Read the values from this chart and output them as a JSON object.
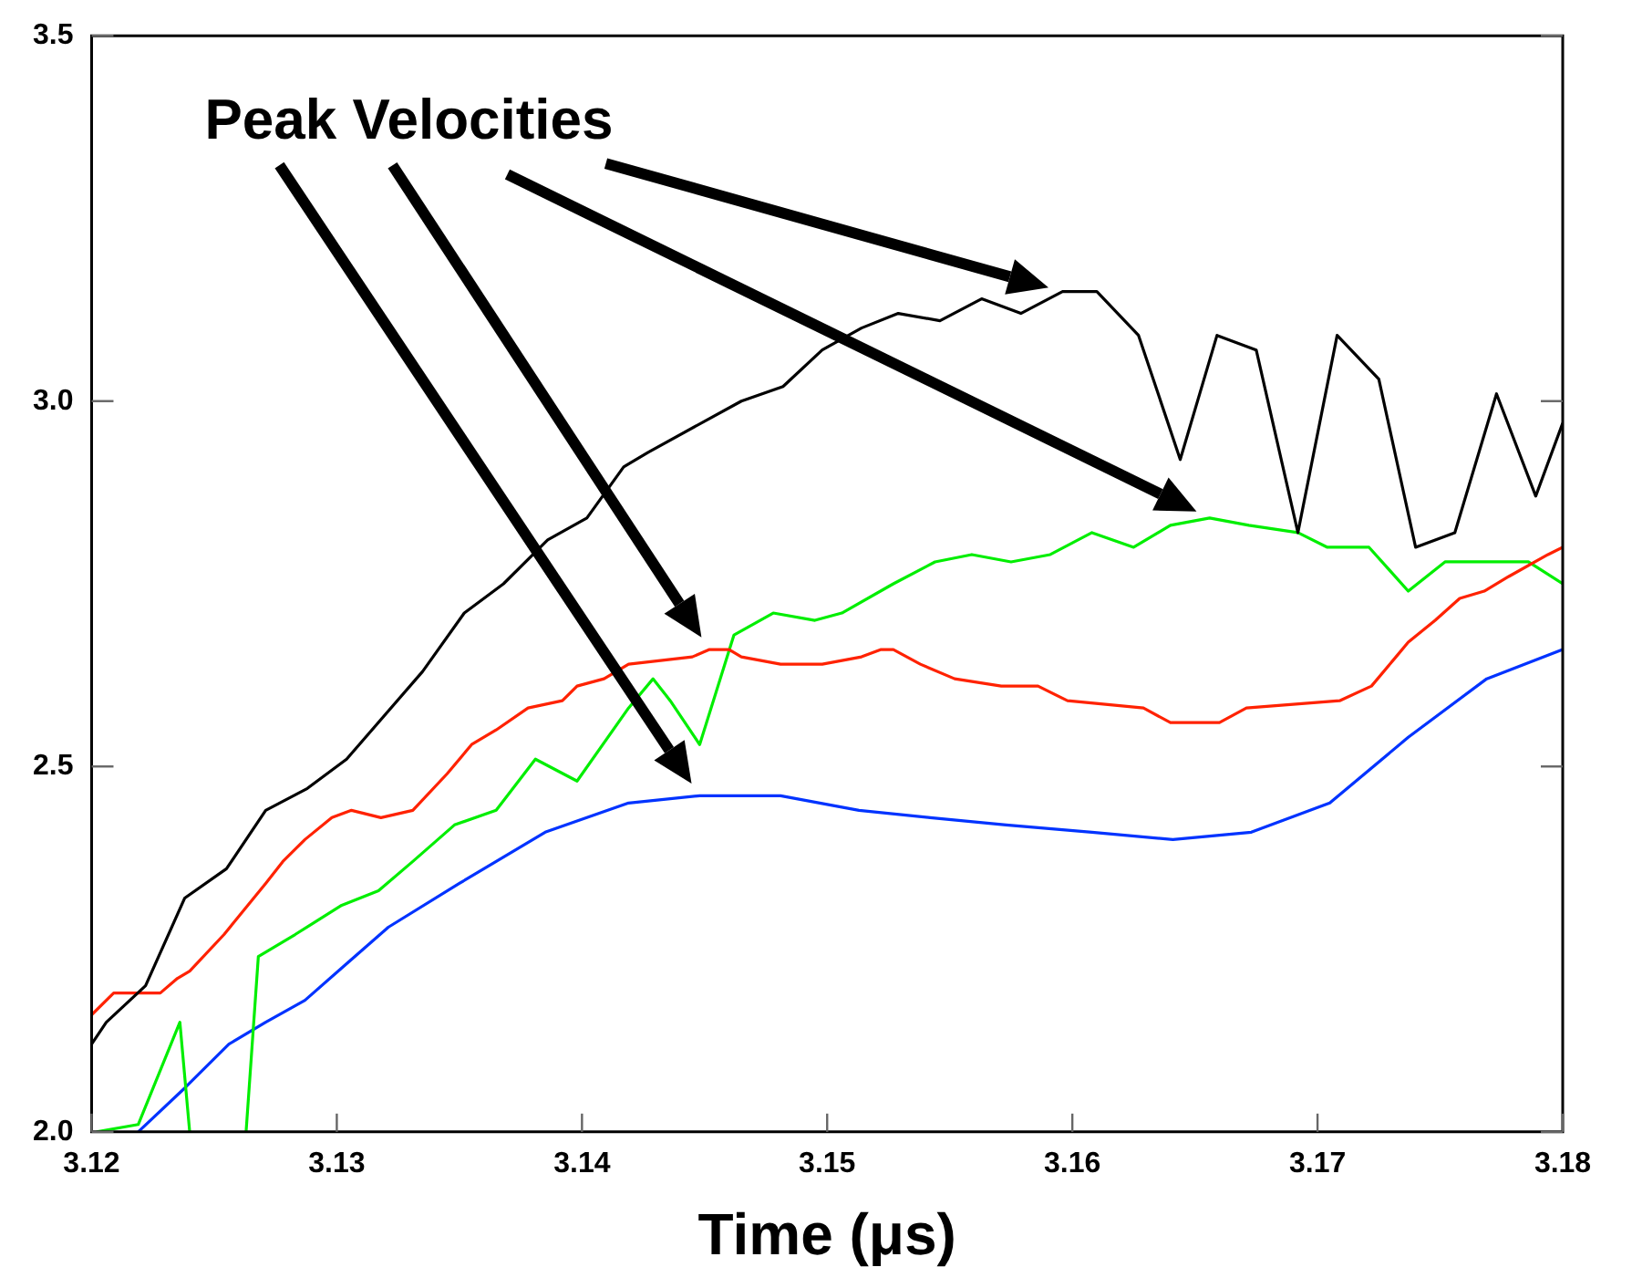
{
  "chart_data": {
    "type": "line",
    "xlabel": "Time (μs)",
    "annotations": [
      "Peak Velocities"
    ],
    "xlim": [
      3.12,
      3.18
    ],
    "xticks": [
      3.12,
      3.13,
      3.14,
      3.15,
      3.16,
      3.17,
      3.18
    ],
    "ylim": [
      2,
      3.5
    ],
    "yticks": [
      {
        "value": 2,
        "label": "2.0"
      },
      {
        "value": 2.5,
        "label": "2.5"
      },
      {
        "value": 3,
        "label": "3.0"
      },
      {
        "value": 3.5,
        "label": "3.5"
      }
    ],
    "grid": false,
    "legend": false,
    "marker": "none",
    "line_style": "solid",
    "series": [
      {
        "color": "#000000",
        "x": [
          3.12,
          3.1206,
          3.1222,
          3.1238,
          3.1255,
          3.1271,
          3.1288,
          3.1304,
          3.1335,
          3.1352,
          3.1368,
          3.1386,
          3.1402,
          3.1417,
          3.1427,
          3.1465,
          3.1482,
          3.1498,
          3.1514,
          3.1529,
          3.1546,
          3.1563,
          3.1579,
          3.1596,
          3.161,
          3.1627,
          3.1644,
          3.1659,
          3.1675,
          3.1692,
          3.1708,
          3.1725,
          3.174,
          3.1756,
          3.1773,
          3.1789,
          3.18
        ],
        "values": [
          2.12,
          2.15,
          2.2,
          2.32,
          2.36,
          2.44,
          2.47,
          2.51,
          2.63,
          2.71,
          2.75,
          2.81,
          2.84,
          2.91,
          2.93,
          3.0,
          3.02,
          3.07,
          3.1,
          3.12,
          3.11,
          3.14,
          3.12,
          3.15,
          3.15,
          3.09,
          2.92,
          3.09,
          3.07,
          2.82,
          3.09,
          3.03,
          2.8,
          2.82,
          3.01,
          2.87,
          2.97
        ]
      },
      {
        "color": "#ff2200",
        "x": [
          3.12,
          3.1209,
          3.1228,
          3.1235,
          3.124,
          3.1254,
          3.1271,
          3.1278,
          3.1287,
          3.1298,
          3.1306,
          3.1318,
          3.1331,
          3.1345,
          3.1355,
          3.1365,
          3.1378,
          3.1392,
          3.1398,
          3.1409,
          3.1419,
          3.1445,
          3.1452,
          3.146,
          3.1465,
          3.1481,
          3.1498,
          3.1514,
          3.1522,
          3.1527,
          3.1538,
          3.1552,
          3.1571,
          3.1586,
          3.1598,
          3.1629,
          3.164,
          3.166,
          3.1671,
          3.1709,
          3.1722,
          3.1732,
          3.1737,
          3.1748,
          3.1758,
          3.1768,
          3.1778,
          3.1794,
          3.18
        ],
        "values": [
          2.16,
          2.19,
          2.19,
          2.21,
          2.22,
          2.27,
          2.34,
          2.37,
          2.4,
          2.43,
          2.44,
          2.43,
          2.44,
          2.49,
          2.53,
          2.55,
          2.58,
          2.59,
          2.61,
          2.62,
          2.64,
          2.65,
          2.66,
          2.66,
          2.65,
          2.64,
          2.64,
          2.65,
          2.66,
          2.66,
          2.64,
          2.62,
          2.61,
          2.61,
          2.59,
          2.58,
          2.56,
          2.56,
          2.58,
          2.59,
          2.61,
          2.65,
          2.67,
          2.7,
          2.73,
          2.74,
          2.76,
          2.79,
          2.8
        ]
      },
      {
        "color": "#00ee00",
        "x": [
          3.1202,
          3.1219,
          3.1236,
          3.124,
          3.125,
          3.1263,
          3.1268,
          3.1283,
          3.1302,
          3.1317,
          3.1331,
          3.1348,
          3.1365,
          3.1381,
          3.1398,
          3.1419,
          3.1429,
          3.1436,
          3.1448,
          3.1462,
          3.1478,
          3.1495,
          3.1506,
          3.1527,
          3.1544,
          3.1559,
          3.1575,
          3.1591,
          3.1608,
          3.1625,
          3.164,
          3.1656,
          3.1672,
          3.1692,
          3.1704,
          3.1721,
          3.1737,
          3.1752,
          3.1771,
          3.1786,
          3.18
        ],
        "values": [
          2.0,
          2.01,
          2.15,
          2.0,
          null,
          2.0,
          2.24,
          2.27,
          2.31,
          2.33,
          2.37,
          2.42,
          2.44,
          2.51,
          2.48,
          2.58,
          2.62,
          2.59,
          2.53,
          2.68,
          2.71,
          2.7,
          2.71,
          2.75,
          2.78,
          2.79,
          2.78,
          2.79,
          2.82,
          2.8,
          2.83,
          2.84,
          2.83,
          2.82,
          2.8,
          2.8,
          2.74,
          2.78,
          2.78,
          2.78,
          2.75
        ]
      },
      {
        "color": "#0033ff",
        "x": [
          3.1219,
          3.1238,
          3.1256,
          3.1271,
          3.1287,
          3.1304,
          3.1321,
          3.135,
          3.1365,
          3.1385,
          3.1402,
          3.1419,
          3.1448,
          3.1481,
          3.1513,
          3.1542,
          3.1573,
          3.1608,
          3.1641,
          3.1673,
          3.1705,
          3.1737,
          3.1769,
          3.18
        ],
        "values": [
          2.0,
          2.06,
          2.12,
          2.15,
          2.18,
          2.23,
          2.28,
          2.34,
          2.37,
          2.41,
          2.43,
          2.45,
          2.46,
          2.46,
          2.44,
          2.43,
          2.42,
          2.41,
          2.4,
          2.41,
          2.45,
          2.54,
          2.62,
          2.66
        ]
      }
    ]
  }
}
